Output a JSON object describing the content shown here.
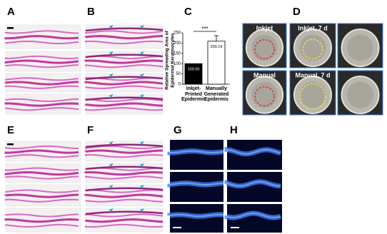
{
  "panel_labels": [
    "A",
    "B",
    "C",
    "D",
    "E",
    "F",
    "G",
    "H"
  ],
  "photo_labels": [
    "Inkjet",
    "Manual",
    "Inkjet, 7 d",
    "Manual, 7 d"
  ],
  "chart_data": {
    "type": "bar",
    "ylabel": "Relative Spreading Area of Epidermal Keratinocytes",
    "categories": [
      "Inkjet-Printed Epidermis",
      "Manually Generated Epidermis"
    ],
    "values": [
      100.0,
      209.19
    ],
    "value_labels": [
      "100.00",
      "209.19"
    ],
    "colors": [
      "#000000",
      "#ffffff"
    ],
    "annotation": "***",
    "ylim": [
      0,
      250
    ],
    "yticks": [
      0,
      50,
      100,
      150,
      200,
      250
    ]
  }
}
